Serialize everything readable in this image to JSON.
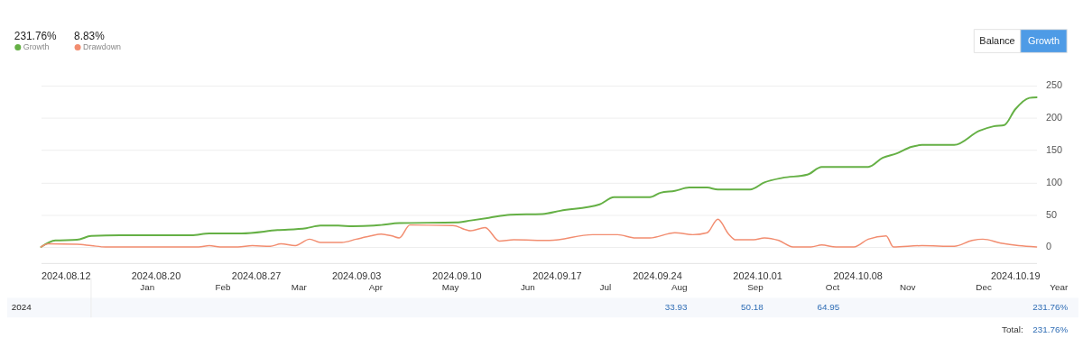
{
  "chart_data": [
    {
      "type": "line",
      "legend": "top left",
      "grid": "y",
      "xlim": [
        "2024-08-12",
        "2024-10-20T12:00"
      ],
      "ylim": [
        -25,
        250
      ],
      "xticks": [
        {
          "value": "2024-08-12",
          "label": "2024.08.12"
        },
        {
          "value": "2024-08-20",
          "label": "2024.08.20"
        },
        {
          "value": "2024-08-27",
          "label": "2024.08.27"
        },
        {
          "value": "2024-09-03",
          "label": "2024.09.03"
        },
        {
          "value": "2024-09-10",
          "label": "2024.09.10"
        },
        {
          "value": "2024-09-17",
          "label": "2024.09.17"
        },
        {
          "value": "2024-09-24",
          "label": "2024.09.24"
        },
        {
          "value": "2024-10-01",
          "label": "2024.10.01"
        },
        {
          "value": "2024-10-08",
          "label": "2024.10.08"
        },
        {
          "value": "2024-10-19",
          "label": "2024.10.19"
        }
      ],
      "yticks": [
        0,
        50,
        100,
        150,
        200,
        250
      ],
      "annotations": [
        "231.76%",
        "8.83%",
        "Balance",
        "Growth"
      ],
      "series": [
        {
          "name": "Growth",
          "color": "#65b045",
          "x": [
            "2024-08-12",
            "2024-08-13",
            "2024-08-14T12:00",
            "2024-08-15T12:00",
            "2024-08-17T12:00",
            "2024-08-22T12:00",
            "2024-08-23T18:00",
            "2024-08-26",
            "2024-08-28T12:00",
            "2024-08-30T12:00",
            "2024-08-31T12:00",
            "2024-09-01T18:00",
            "2024-09-02T18:00",
            "2024-09-04T06:00",
            "2024-09-04T18:00",
            "2024-09-06",
            "2024-09-10",
            "2024-09-11",
            "2024-09-12T06:00",
            "2024-09-13T18:00",
            "2024-09-16",
            "2024-09-17T06:00",
            "2024-09-20",
            "2024-09-21",
            "2024-09-23T12:00",
            "2024-09-24T06:00",
            "2024-09-25T06:00",
            "2024-09-26T06:00",
            "2024-09-27T12:00",
            "2024-09-28T06:00",
            "2024-09-30T12:00",
            "2024-10-01T12:00",
            "2024-10-02T18:00",
            "2024-10-04T12:00",
            "2024-10-05T12:00",
            "2024-10-08T18:00",
            "2024-10-09T18:00",
            "2024-10-10T18:00",
            "2024-10-11T18:00",
            "2024-10-12T12:00",
            "2024-10-14T18:00",
            "2024-10-16T12:00",
            "2024-10-17T12:00",
            "2024-10-18T06:00",
            "2024-10-19",
            "2024-10-20",
            "2024-10-20T12:00"
          ],
          "values": [
            0,
            10,
            11,
            17,
            18,
            18,
            21,
            21,
            26,
            29,
            33,
            33,
            32,
            33,
            34,
            37,
            38,
            41,
            45,
            50,
            51,
            56,
            66,
            77,
            77,
            84,
            87,
            92,
            92,
            89,
            89,
            100,
            107,
            112,
            124,
            124,
            138,
            145,
            155,
            158,
            158,
            180,
            187,
            189,
            213,
            231,
            232
          ]
        },
        {
          "name": "Drawdown",
          "color": "#f28d70",
          "x": [
            "2024-08-12",
            "2024-08-12T12:00",
            "2024-08-14T12:00",
            "2024-08-15T12:00",
            "2024-08-16T12:00",
            "2024-08-23",
            "2024-08-23T18:00",
            "2024-08-24T12:00",
            "2024-08-25T18:00",
            "2024-08-26T18:00",
            "2024-08-28",
            "2024-08-28T18:00",
            "2024-08-29T18:00",
            "2024-08-30T18:00",
            "2024-08-31T12:00",
            "2024-09-02",
            "2024-09-03",
            "2024-09-04",
            "2024-09-04T18:00",
            "2024-09-05T12:00",
            "2024-09-06",
            "2024-09-06T18:00",
            "2024-09-09T18:00",
            "2024-09-11",
            "2024-09-12",
            "2024-09-13",
            "2024-09-14",
            "2024-09-16T12:00",
            "2024-09-19T12:00",
            "2024-09-21T06:00",
            "2024-09-22T12:00",
            "2024-09-23T12:00",
            "2024-09-25T06:00",
            "2024-09-26T12:00",
            "2024-09-27T12:00",
            "2024-09-28T06:00",
            "2024-09-29",
            "2024-09-29T12:00",
            "2024-09-30T18:00",
            "2024-10-01T12:00",
            "2024-10-02T12:00",
            "2024-10-03T12:00",
            "2024-10-04T18:00",
            "2024-10-05T12:00",
            "2024-10-06T12:00",
            "2024-10-07T18:00",
            "2024-10-08T18:00",
            "2024-10-10",
            "2024-10-10T12:00",
            "2024-10-12T12:00",
            "2024-10-14T18:00",
            "2024-10-16",
            "2024-10-16T18:00",
            "2024-10-18",
            "2024-10-19T06:00",
            "2024-10-20T12:00"
          ],
          "values": [
            0,
            5,
            4,
            2,
            0,
            0,
            2,
            0,
            0,
            2,
            1,
            5,
            2,
            12,
            7,
            7,
            12,
            17,
            20,
            17,
            14,
            34,
            33,
            25,
            30,
            9,
            11,
            10,
            19,
            19,
            14,
            14,
            22,
            19,
            22,
            43,
            20,
            11,
            11,
            14,
            10,
            0,
            0,
            3,
            0,
            0,
            12,
            17,
            0,
            2,
            1,
            10,
            12,
            6,
            2,
            0
          ]
        }
      ]
    },
    {
      "type": "other",
      "categories": [
        "Jan",
        "Feb",
        "Mar",
        "Apr",
        "May",
        "Jun",
        "Jul",
        "Aug",
        "Sep",
        "Oct",
        "Nov",
        "Dec",
        "Year"
      ],
      "y_categories": [
        "2024"
      ],
      "value_labels": [
        null,
        null,
        null,
        null,
        null,
        null,
        null,
        "33.93",
        "50.18",
        "64.95",
        null,
        null,
        "231.76%"
      ],
      "annotations": [
        "Total:",
        "231.76%"
      ]
    }
  ]
}
